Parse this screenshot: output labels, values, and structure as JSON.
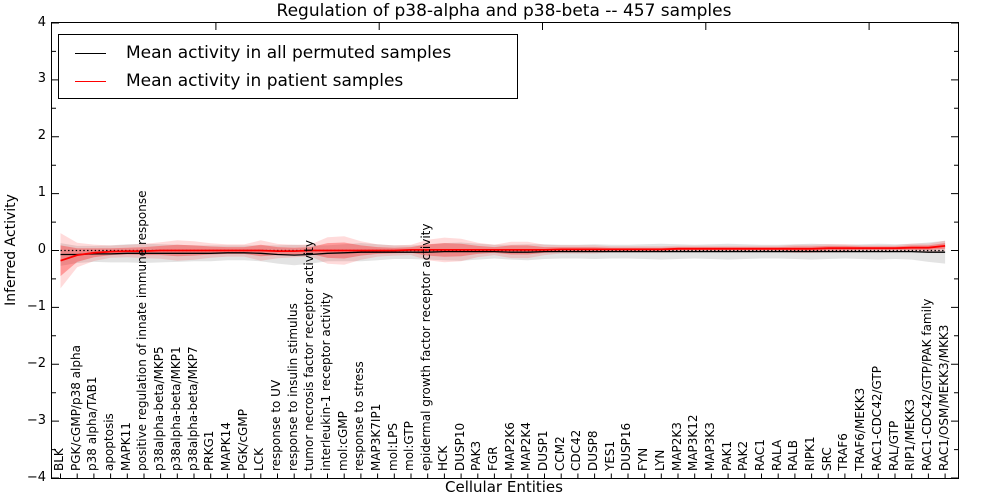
{
  "title": "Regulation of p38-alpha and p38-beta -- 457 samples",
  "axes": {
    "xlabel": "Cellular Entities",
    "ylabel": "Inferred Activity"
  },
  "legend": [
    {
      "label": "Mean activity in all permuted samples",
      "color": "#000000"
    },
    {
      "label": "Mean activity in patient samples",
      "color": "#ff0000"
    }
  ],
  "colors": {
    "permuted_line": "#000000",
    "patient_line": "#ff0000",
    "permuted_band": "#999999",
    "patient_band": "#ff0000",
    "zero_line": "#000000"
  },
  "chart_data": {
    "type": "line",
    "title": "Regulation of p38-alpha and p38-beta -- 457 samples",
    "xlabel": "Cellular Entities",
    "ylabel": "Inferred Activity",
    "ylim": [
      -4,
      4
    ],
    "yticks": [
      -4,
      -3,
      -2,
      -1,
      0,
      1,
      2,
      3,
      4
    ],
    "grid": false,
    "legend_position": "upper left",
    "zero_reference_line": 0,
    "categories": [
      "BLK",
      "PGK/cGMP/p38 alpha",
      "p38 alpha/TAB1",
      "apoptosis",
      "MAPK11",
      "positive regulation of innate immune response",
      "p38alpha-beta/MKP5",
      "p38alpha-beta/MKP1",
      "p38alpha-beta/MKP7",
      "PRKG1",
      "MAPK14",
      "PGK/cGMP",
      "LCK",
      "response to UV",
      "response to insulin stimulus",
      "tumor necrosis factor receptor activity",
      "interleukin-1 receptor activity",
      "mol:cGMP",
      "response to stress",
      "MAP3K7IP1",
      "mol:LPS",
      "mol:GTP",
      "epidermal growth factor receptor activity",
      "HCK",
      "DUSP10",
      "PAK3",
      "FGR",
      "MAP2K6",
      "MAP2K4",
      "DUSP1",
      "CCM2",
      "CDC42",
      "DUSP8",
      "YES1",
      "DUSP16",
      "FYN",
      "LYN",
      "MAP2K3",
      "MAP3K12",
      "MAP3K3",
      "PAK1",
      "PAK2",
      "RAC1",
      "RALA",
      "RALB",
      "RIPK1",
      "SRC",
      "TRAF6",
      "TRAF6/MEKK3",
      "RAC1-CDC42/GTP",
      "RAL/GTP",
      "RIP1/MEKK3",
      "RAC1-CDC42/GTP/PAK family",
      "RAC1/OSM/MEKK3/MKK3"
    ],
    "series": [
      {
        "name": "Mean activity in all permuted samples",
        "color": "#000000",
        "values": [
          -0.07,
          -0.07,
          -0.06,
          -0.06,
          -0.05,
          -0.05,
          -0.05,
          -0.05,
          -0.05,
          -0.05,
          -0.04,
          -0.04,
          -0.05,
          -0.07,
          -0.08,
          -0.07,
          -0.05,
          -0.04,
          -0.03,
          -0.03,
          -0.03,
          -0.03,
          -0.03,
          -0.02,
          -0.02,
          -0.02,
          -0.02,
          -0.03,
          -0.03,
          -0.02,
          -0.02,
          -0.02,
          -0.02,
          -0.02,
          -0.02,
          -0.02,
          -0.02,
          -0.02,
          -0.02,
          -0.02,
          -0.02,
          -0.02,
          -0.02,
          -0.02,
          -0.02,
          -0.02,
          -0.02,
          -0.02,
          -0.02,
          -0.02,
          -0.02,
          -0.02,
          -0.03,
          -0.03
        ],
        "band_halfwidth": [
          0.2,
          0.15,
          0.14,
          0.15,
          0.16,
          0.17,
          0.16,
          0.15,
          0.14,
          0.14,
          0.13,
          0.13,
          0.14,
          0.16,
          0.18,
          0.16,
          0.14,
          0.15,
          0.16,
          0.14,
          0.12,
          0.12,
          0.13,
          0.15,
          0.16,
          0.14,
          0.12,
          0.13,
          0.14,
          0.13,
          0.12,
          0.12,
          0.13,
          0.12,
          0.12,
          0.13,
          0.14,
          0.13,
          0.12,
          0.13,
          0.14,
          0.13,
          0.12,
          0.12,
          0.13,
          0.14,
          0.13,
          0.12,
          0.13,
          0.14,
          0.13,
          0.14,
          0.17,
          0.2
        ]
      },
      {
        "name": "Mean activity in patient samples",
        "color": "#ff0000",
        "values": [
          -0.18,
          -0.08,
          -0.04,
          -0.02,
          -0.01,
          -0.01,
          0,
          0,
          0,
          0,
          0,
          0,
          0,
          -0.01,
          -0.01,
          0,
          0,
          0,
          0,
          0,
          0,
          0.01,
          0.01,
          0.01,
          0.01,
          0.01,
          0.01,
          0.01,
          0.01,
          0.01,
          0.02,
          0.02,
          0.02,
          0.02,
          0.02,
          0.02,
          0.02,
          0.03,
          0.03,
          0.03,
          0.03,
          0.03,
          0.03,
          0.03,
          0.03,
          0.03,
          0.04,
          0.04,
          0.04,
          0.04,
          0.04,
          0.05,
          0.05,
          0.08
        ],
        "band_halfwidth": [
          0.27,
          0.12,
          0.08,
          0.06,
          0.06,
          0.07,
          0.08,
          0.1,
          0.09,
          0.07,
          0.06,
          0.06,
          0.1,
          0.07,
          0.06,
          0.06,
          0.13,
          0.14,
          0.09,
          0.06,
          0.05,
          0.05,
          0.1,
          0.12,
          0.11,
          0.07,
          0.05,
          0.08,
          0.08,
          0.05,
          0.04,
          0.04,
          0.04,
          0.03,
          0.03,
          0.03,
          0.03,
          0.03,
          0.03,
          0.03,
          0.03,
          0.03,
          0.03,
          0.03,
          0.04,
          0.04,
          0.04,
          0.04,
          0.03,
          0.03,
          0.03,
          0.04,
          0.04,
          0.05
        ]
      }
    ]
  }
}
